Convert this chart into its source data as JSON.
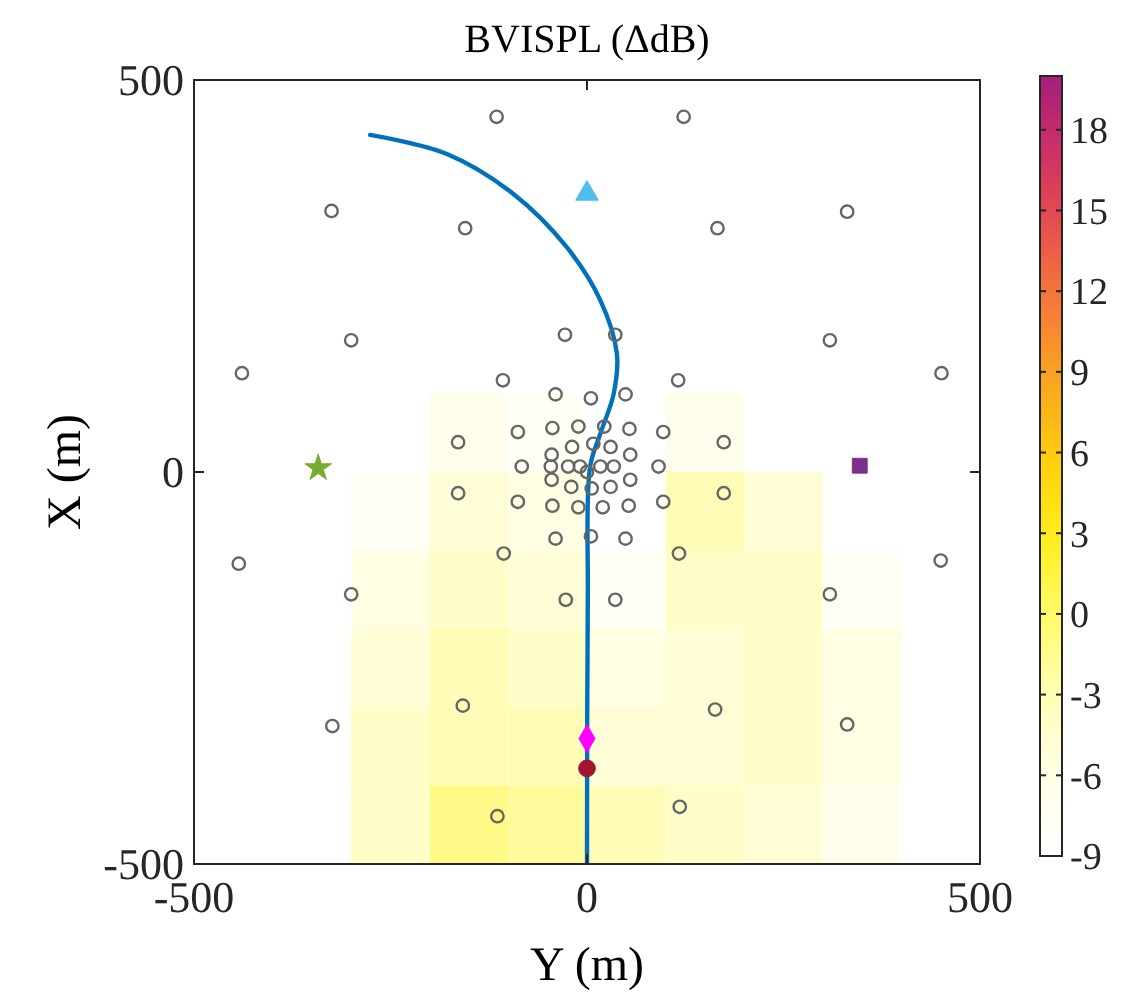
{
  "chart_data": {
    "type": "scatter",
    "title": "BVISPL (ΔdB)",
    "xlabel": "Y (m)",
    "ylabel": "X (m)",
    "xlim": [
      -500,
      500
    ],
    "ylim": [
      -500,
      500
    ],
    "xticks": [
      -500,
      0,
      500
    ],
    "yticks": [
      -500,
      0,
      500
    ],
    "clim": [
      -9,
      20
    ],
    "cticks": [
      -9,
      -6,
      -3,
      0,
      3,
      6,
      9,
      12,
      15,
      18
    ],
    "series": [
      {
        "marker": "square",
        "x": [
          -150,
          -50,
          150,
          -250,
          -150,
          -50,
          150,
          250,
          -250,
          -150,
          -50,
          50,
          150,
          250,
          350,
          -250,
          -150,
          -50,
          50,
          150,
          250,
          350,
          -250,
          -150,
          -50,
          50,
          150,
          250,
          350,
          -250,
          -150,
          -50,
          50,
          150,
          250,
          350
        ],
        "values": [
          50,
          50,
          50,
          -50,
          -50,
          -50,
          -50,
          -50,
          -150,
          -150,
          -150,
          -150,
          -150,
          -150,
          -150,
          -250,
          -250,
          -250,
          -250,
          -250,
          -250,
          -250,
          -350,
          -350,
          -350,
          -350,
          -350,
          -350,
          -350,
          -450,
          -450,
          -450,
          -450,
          -450,
          -450,
          -450
        ],
        "cvalues": [
          -7,
          -8,
          -7,
          -8,
          -5,
          -6,
          -3,
          -5,
          -6,
          -4,
          -5,
          -8,
          -4,
          -4,
          -8,
          -5,
          -3,
          -4,
          -6,
          -5,
          -4,
          -6,
          -4,
          -3,
          -3,
          -5,
          -5,
          -4,
          -6,
          -4,
          -1,
          -2,
          -3,
          -4,
          -5,
          -7
        ],
        "colors": [
          "#fffeec",
          "#fffff6",
          "#fffeec",
          "#fffff6",
          "#fffdd6",
          "#fffee2",
          "#fffcb8",
          "#fffdd6",
          "#fffee2",
          "#fffdc8",
          "#fffdd6",
          "#fffff6",
          "#fffdc8",
          "#fffdc8",
          "#fffff6",
          "#fffdd6",
          "#fffcb8",
          "#fffdc8",
          "#fffee2",
          "#fffdd6",
          "#fffdc8",
          "#fffee2",
          "#fffdc8",
          "#fffcb8",
          "#fffcb8",
          "#fffdd6",
          "#fffdd6",
          "#fffdc8",
          "#fffee2",
          "#fffdc8",
          "#fffa88",
          "#fffb9c",
          "#fffcb8",
          "#fffdc8",
          "#fffdd6",
          "#fffeec"
        ]
      },
      {
        "type": "line",
        "color": "#0072bd",
        "x": [
          -276,
          -179,
          -94,
          -26,
          17,
          38,
          34,
          17,
          4,
          1,
          0
        ],
        "values": [
          430,
          406,
          355,
          287,
          219,
          151,
          100,
          49,
          7,
          -163,
          -500
        ]
      },
      {
        "marker": "circle",
        "color": "#666666",
        "x": [
          -115,
          123,
          -325,
          -155,
          166,
          331,
          -300,
          -28,
          36,
          309,
          -439,
          -107,
          116,
          451,
          -40,
          5,
          49,
          -164,
          -88,
          -44,
          -11,
          22,
          54,
          97,
          174,
          -45,
          -19,
          8,
          30,
          55,
          -83,
          -46,
          -24,
          -9,
          17,
          34,
          91,
          -45,
          -20,
          6,
          30,
          55,
          -164,
          -88,
          -44,
          -11,
          20,
          53,
          97,
          174,
          -40,
          5,
          49,
          -106,
          117,
          -443,
          -300,
          -27,
          36,
          309,
          450,
          -324,
          -158,
          163,
          331,
          -114,
          118,
          0
        ],
        "values": [
          453,
          453,
          333,
          311,
          311,
          332,
          168,
          175,
          175,
          168,
          126,
          117,
          117,
          126,
          99,
          94,
          99,
          38,
          51,
          56,
          58,
          58,
          55,
          51,
          38,
          22,
          32,
          36,
          32,
          22,
          7,
          7,
          7,
          7,
          7,
          7,
          7,
          -10,
          -19,
          -21,
          -19,
          -10,
          -27,
          -38,
          -43,
          -45,
          -45,
          -43,
          -38,
          -27,
          -85,
          -82,
          -85,
          -104,
          -104,
          -117,
          -156,
          -163,
          -163,
          -156,
          -113,
          -324,
          -298,
          -303,
          -322,
          -439,
          -427,
          0
        ]
      },
      {
        "marker": "triangle",
        "color": "#4dbeee",
        "x": [
          0
        ],
        "values": [
          355
        ]
      },
      {
        "marker": "star",
        "color": "#77ac30",
        "x": [
          -342
        ],
        "values": [
          5
        ]
      },
      {
        "marker": "square",
        "color": "#7e2f8e",
        "x": [
          347
        ],
        "values": [
          8
        ]
      },
      {
        "marker": "diamond",
        "color": "#ff00ff",
        "x": [
          0
        ],
        "values": [
          -340
        ]
      },
      {
        "marker": "circle",
        "color": "#a2142f",
        "x": [
          0
        ],
        "values": [
          -378
        ]
      }
    ]
  }
}
